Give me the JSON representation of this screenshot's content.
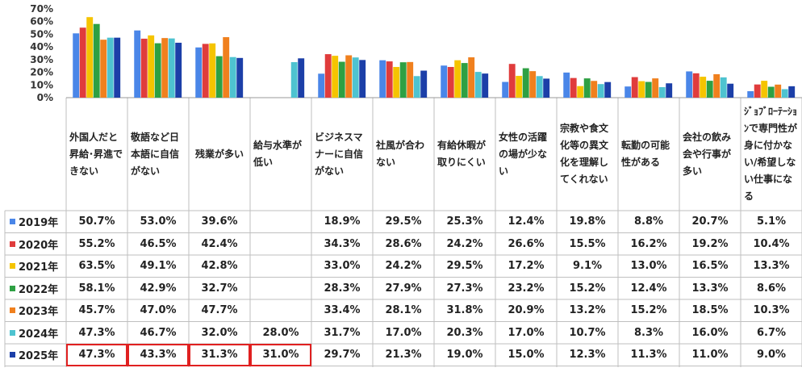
{
  "chart_data": {
    "type": "bar",
    "categories": [
      "外国人だと昇給･昇進できない",
      "敬語など日本語に自信がない",
      "残業が多い",
      "給与水準が低い",
      "ビジネスマナーに自信がない",
      "社風が合わない",
      "有給休暇が取りにくい",
      "女性の活躍の場が少ない",
      "宗教や食文化等の異文化を理解してくれない",
      "転勤の可能性がある",
      "会社の飲み会や行事が多い",
      "ｼﾞｮﾌﾞﾛｰﾃｰｼｮﾝで専門性が身に付かない/希望しない仕事になる"
    ],
    "ylim": [
      0,
      70
    ],
    "yticks": [
      "0%",
      "10%",
      "20%",
      "30%",
      "40%",
      "50%",
      "60%",
      "70%"
    ],
    "grid": false,
    "legend": "table-left",
    "series": [
      {
        "name": "2019年",
        "color": "#4a86e8",
        "values": [
          50.7,
          53.0,
          39.6,
          null,
          18.9,
          29.5,
          25.3,
          12.4,
          19.8,
          8.8,
          20.7,
          5.1
        ],
        "labels": [
          "50.7%",
          "53.0%",
          "39.6%",
          "",
          "18.9%",
          "29.5%",
          "25.3%",
          "12.4%",
          "19.8%",
          "8.8%",
          "20.7%",
          "5.1%"
        ]
      },
      {
        "name": "2020年",
        "color": "#e03c3c",
        "values": [
          55.2,
          46.5,
          42.4,
          null,
          34.3,
          28.6,
          24.2,
          26.6,
          15.5,
          16.2,
          19.2,
          10.4
        ],
        "labels": [
          "55.2%",
          "46.5%",
          "42.4%",
          "",
          "34.3%",
          "28.6%",
          "24.2%",
          "26.6%",
          "15.5%",
          "16.2%",
          "19.2%",
          "10.4%"
        ]
      },
      {
        "name": "2021年",
        "color": "#f5c400",
        "values": [
          63.5,
          49.1,
          42.8,
          null,
          33.0,
          24.2,
          29.5,
          17.2,
          9.1,
          13.0,
          16.5,
          13.3
        ],
        "labels": [
          "63.5%",
          "49.1%",
          "42.8%",
          "",
          "33.0%",
          "24.2%",
          "29.5%",
          "17.2%",
          "9.1%",
          "13.0%",
          "16.5%",
          "13.3%"
        ]
      },
      {
        "name": "2022年",
        "color": "#2ea043",
        "values": [
          58.1,
          42.9,
          32.7,
          null,
          28.3,
          27.9,
          27.3,
          23.2,
          15.2,
          12.4,
          13.3,
          8.6
        ],
        "labels": [
          "58.1%",
          "42.9%",
          "32.7%",
          "",
          "28.3%",
          "27.9%",
          "27.3%",
          "23.2%",
          "15.2%",
          "12.4%",
          "13.3%",
          "8.6%"
        ]
      },
      {
        "name": "2023年",
        "color": "#f0801e",
        "values": [
          45.7,
          47.0,
          47.7,
          null,
          33.4,
          28.1,
          31.8,
          20.9,
          13.2,
          15.2,
          18.5,
          10.3
        ],
        "labels": [
          "45.7%",
          "47.0%",
          "47.7%",
          "",
          "33.4%",
          "28.1%",
          "31.8%",
          "20.9%",
          "13.2%",
          "15.2%",
          "18.5%",
          "10.3%"
        ]
      },
      {
        "name": "2024年",
        "color": "#4ec3d0",
        "values": [
          47.3,
          46.7,
          32.0,
          28.0,
          31.7,
          17.0,
          20.3,
          17.0,
          10.7,
          8.3,
          16.0,
          6.7
        ],
        "labels": [
          "47.3%",
          "46.7%",
          "32.0%",
          "28.0%",
          "31.7%",
          "17.0%",
          "20.3%",
          "17.0%",
          "10.7%",
          "8.3%",
          "16.0%",
          "6.7%"
        ]
      },
      {
        "name": "2025年",
        "color": "#1c3fa8",
        "values": [
          47.3,
          43.3,
          31.3,
          31.0,
          29.7,
          21.3,
          19.0,
          15.0,
          12.3,
          11.3,
          11.0,
          9.0
        ],
        "labels": [
          "47.3%",
          "43.3%",
          "31.3%",
          "31.0%",
          "29.7%",
          "21.3%",
          "19.0%",
          "15.0%",
          "12.3%",
          "11.3%",
          "11.0%",
          "9.0%"
        ]
      }
    ],
    "highlighted_cells": [
      {
        "series": 6,
        "category": 0
      },
      {
        "series": 6,
        "category": 1
      },
      {
        "series": 6,
        "category": 2
      },
      {
        "series": 6,
        "category": 3
      }
    ]
  }
}
